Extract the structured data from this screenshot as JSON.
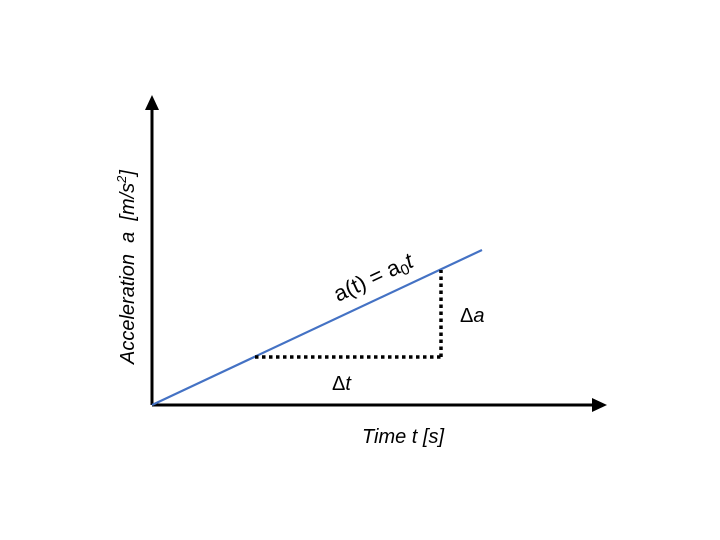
{
  "diagram": {
    "x_axis_label": "Time t [s]",
    "y_axis_label_main": "Acceleration  a  [m/s",
    "y_axis_label_sup": "2",
    "y_axis_label_end": "]",
    "equation": {
      "lhs": "a(t) = a",
      "subscript": "0",
      "rhs": "t"
    },
    "delta_t_label": {
      "symbol": "Δ",
      "var": "t"
    },
    "delta_a_label": {
      "symbol": "Δ",
      "var": "a"
    },
    "colors": {
      "line": "#4472C4",
      "axes": "#000000",
      "guides": "#000000"
    }
  }
}
